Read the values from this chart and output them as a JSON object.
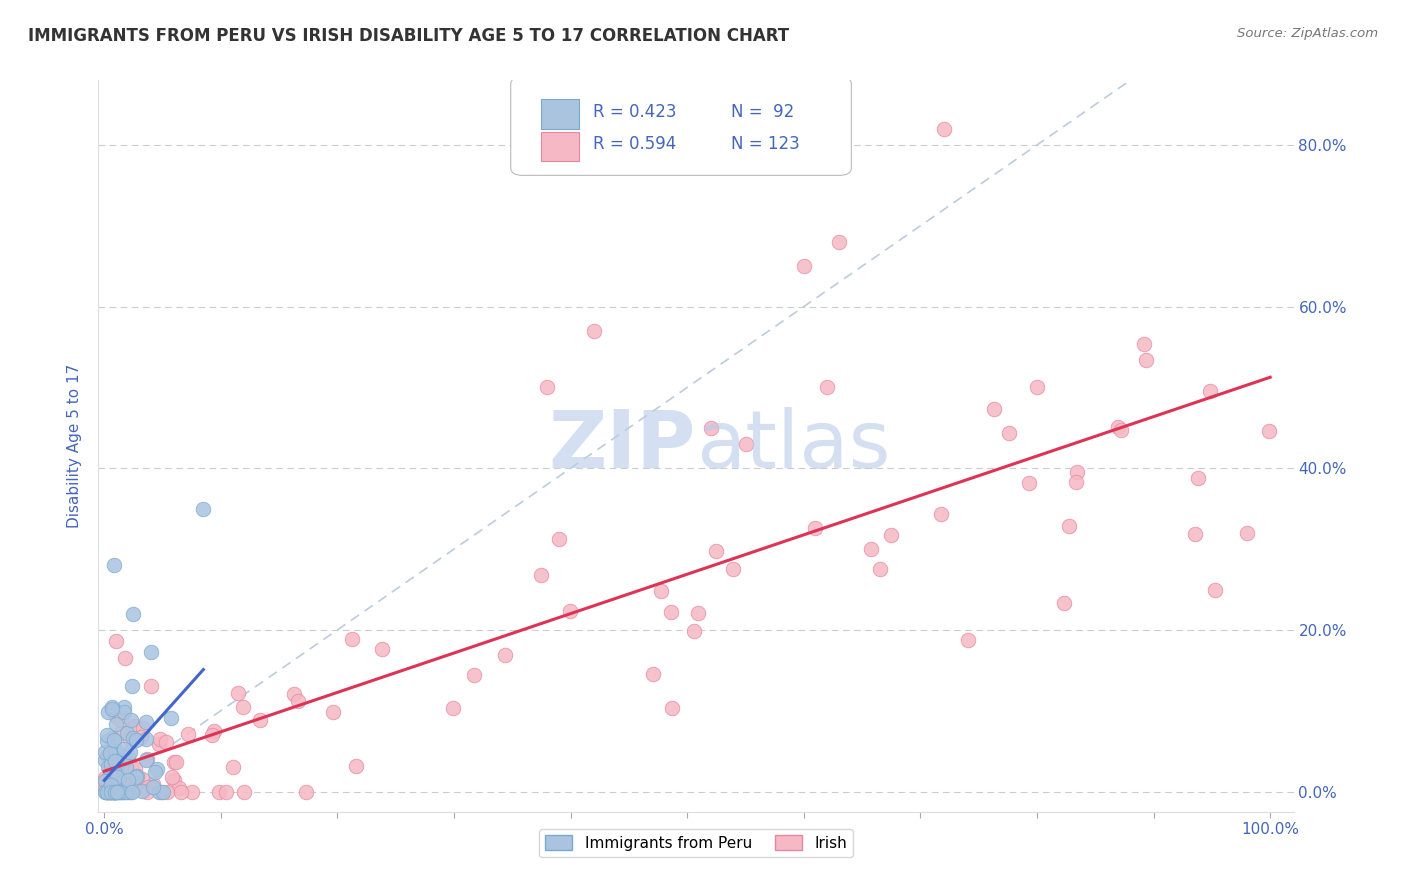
{
  "title": "IMMIGRANTS FROM PERU VS IRISH DISABILITY AGE 5 TO 17 CORRELATION CHART",
  "source": "Source: ZipAtlas.com",
  "ylabel": "Disability Age 5 to 17",
  "background_color": "#ffffff",
  "grid_color": "#cccccc",
  "title_color": "#333333",
  "axis_label_color": "#4466bb",
  "watermark_zip": "ZIP",
  "watermark_atlas": "atlas",
  "watermark_color_zip": "#b8cce8",
  "watermark_color_atlas": "#b8cce8",
  "legend_R1": "R = 0.423",
  "legend_N1": "N =  92",
  "legend_R2": "R = 0.594",
  "legend_N2": "N = 123",
  "legend_color1": "#4466bb",
  "legend_color2": "#4466bb",
  "series1_color": "#aac4e0",
  "series2_color": "#f5b8c4",
  "series1_edge": "#7aaacf",
  "series2_edge": "#e888a0",
  "line1_color": "#4466cc",
  "line2_color": "#dd3355",
  "ref_line_color": "#bbccdd",
  "ytick_labels": [
    "0.0%",
    "20.0%",
    "40.0%",
    "60.0%",
    "80.0%"
  ],
  "ytick_vals": [
    0.0,
    0.2,
    0.4,
    0.6,
    0.8
  ],
  "xtick_labels": [
    "0.0%",
    "",
    "",
    "",
    "",
    "",
    "",
    "",
    "",
    "",
    "100.0%"
  ],
  "xtick_vals": [
    0.0,
    0.1,
    0.2,
    0.3,
    0.4,
    0.5,
    0.6,
    0.7,
    0.8,
    0.9,
    1.0
  ]
}
